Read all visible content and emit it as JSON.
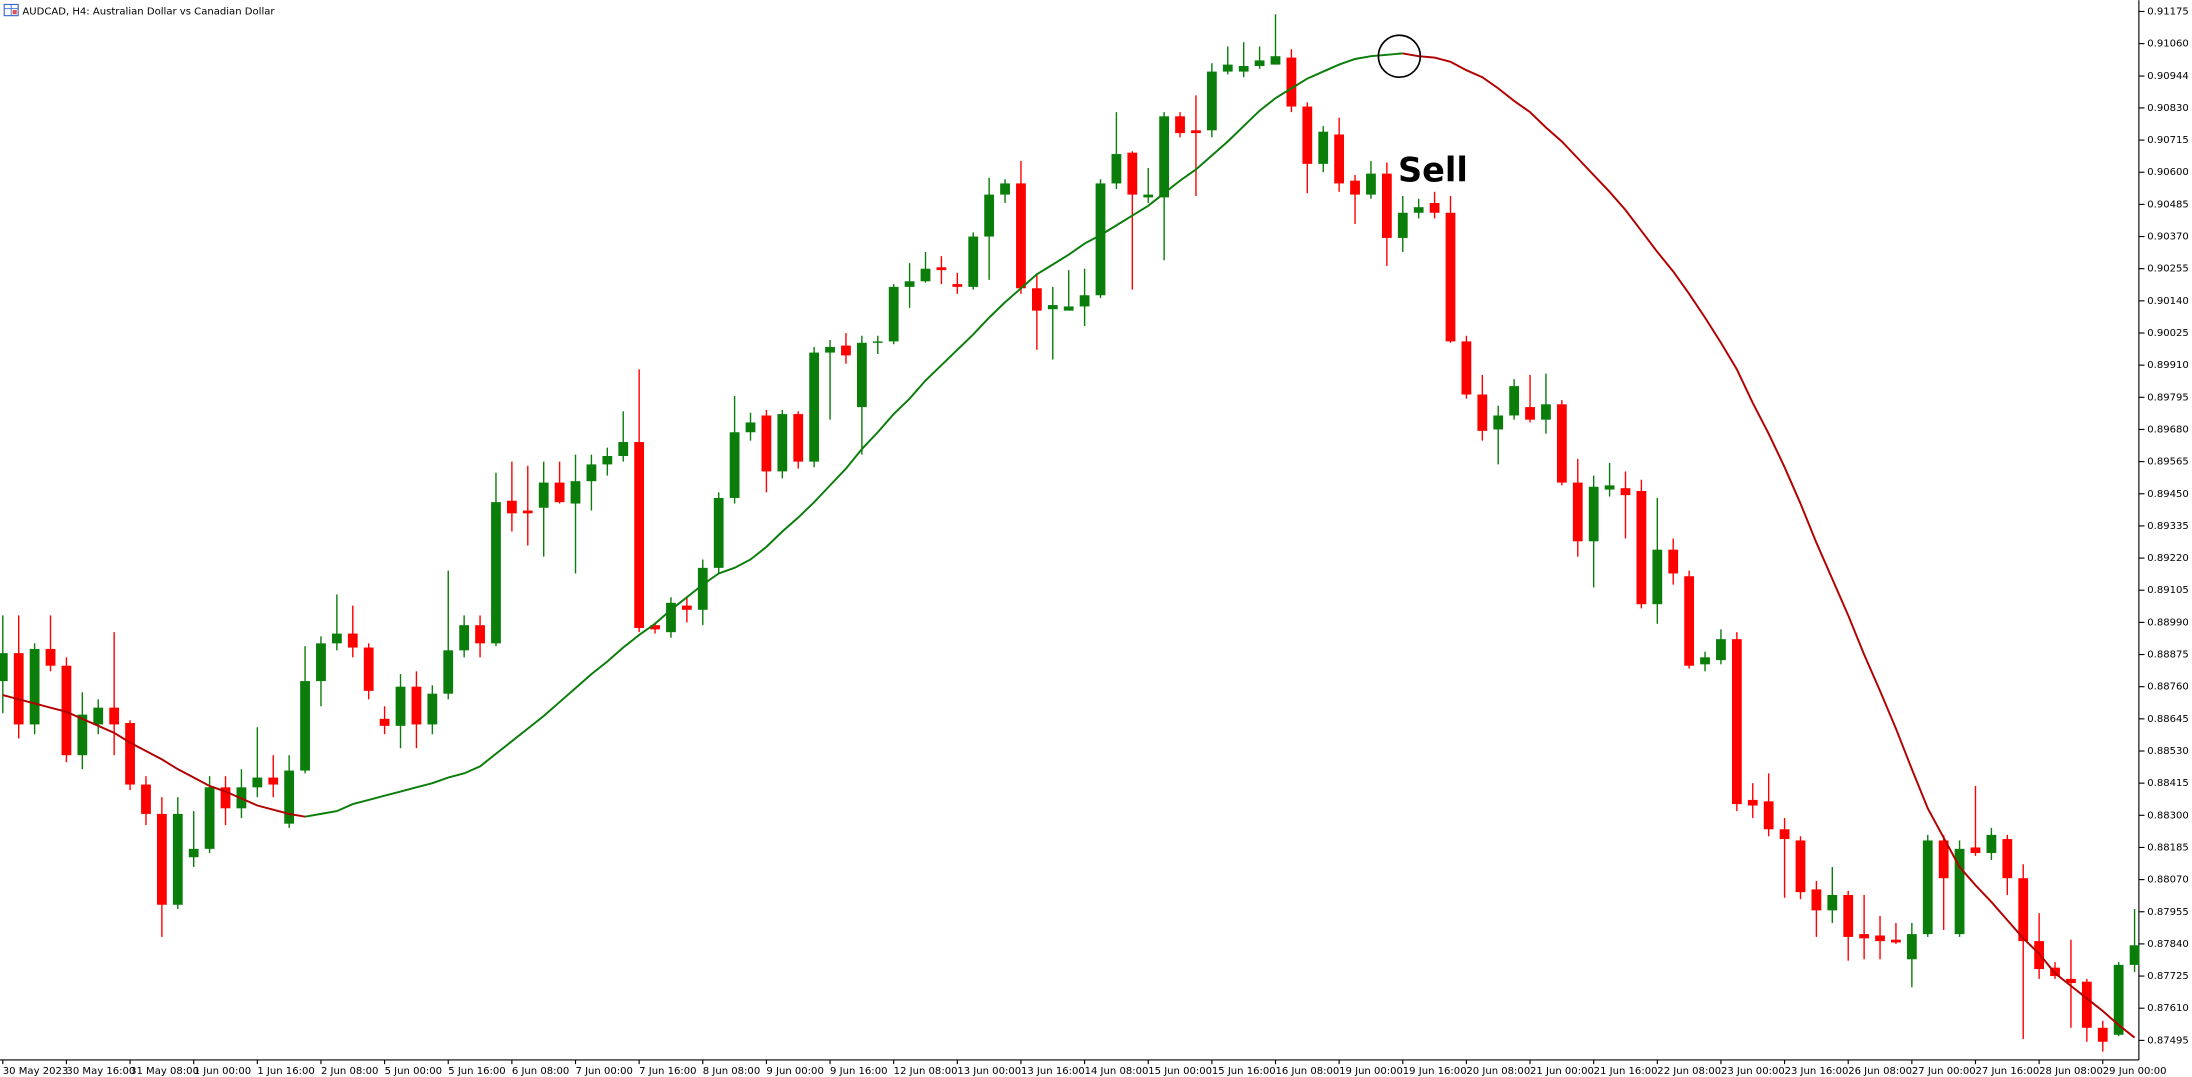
{
  "chart_data": {
    "type": "candlestick",
    "title": "AUDCAD, H4: Australian Dollar vs Canadian Dollar",
    "annotation": "Sell",
    "up_color": "#0a7d0a",
    "down_color": "#ff0000",
    "ylim": [
      0.87425,
      0.91215
    ],
    "yticks": [
      0.91175,
      {
        "value": 0.9106,
        "label": "0.91060"
      },
      0.90944,
      {
        "value": 0.9083,
        "label": "0.90830"
      },
      0.90715,
      {
        "value": 0.906,
        "label": "0.90600"
      },
      0.90485,
      {
        "value": 0.9037,
        "label": "0.90370"
      },
      0.90255,
      {
        "value": 0.9014,
        "label": "0.90140"
      },
      0.90025,
      {
        "value": 0.8991,
        "label": "0.89910"
      },
      0.89795,
      {
        "value": 0.8968,
        "label": "0.89680"
      },
      0.89565,
      {
        "value": 0.8945,
        "label": "0.89450"
      },
      0.89335,
      {
        "value": 0.8922,
        "label": "0.89220"
      },
      0.89105,
      {
        "value": 0.8899,
        "label": "0.88990"
      },
      0.88875,
      {
        "value": 0.8876,
        "label": "0.88760"
      },
      0.88645,
      {
        "value": 0.8853,
        "label": "0.88530"
      },
      0.88415,
      {
        "value": 0.883,
        "label": "0.88300"
      },
      0.88185,
      {
        "value": 0.8807,
        "label": "0.88070"
      },
      0.87955,
      {
        "value": 0.8784,
        "label": "0.87840"
      },
      0.87725,
      {
        "value": 0.8761,
        "label": "0.87610"
      },
      0.87495
    ],
    "categories": [
      "30 May 2023",
      null,
      null,
      null,
      "30 May 16:00",
      null,
      null,
      null,
      "31 May 08:00",
      null,
      null,
      null,
      "1 Jun 00:00",
      null,
      null,
      null,
      "1 Jun 16:00",
      null,
      null,
      null,
      "2 Jun 08:00",
      null,
      null,
      null,
      "5 Jun 00:00",
      null,
      null,
      null,
      "5 Jun 16:00",
      null,
      null,
      null,
      "6 Jun 08:00",
      null,
      null,
      null,
      "7 Jun 00:00",
      null,
      null,
      null,
      "7 Jun 16:00",
      null,
      null,
      null,
      "8 Jun 08:00",
      null,
      null,
      null,
      "9 Jun 00:00",
      null,
      null,
      null,
      "9 Jun 16:00",
      null,
      null,
      null,
      "12 Jun 08:00",
      null,
      null,
      null,
      "13 Jun 00:00",
      null,
      null,
      null,
      "13 Jun 16:00",
      null,
      null,
      null,
      "14 Jun 08:00",
      null,
      null,
      null,
      "15 Jun 00:00",
      null,
      null,
      null,
      "15 Jun 16:00",
      null,
      null,
      null,
      "16 Jun 08:00",
      null,
      null,
      null,
      "19 Jun 00:00",
      null,
      null,
      null,
      "19 Jun 16:00",
      null,
      null,
      null,
      "20 Jun 08:00",
      null,
      null,
      null,
      "21 Jun 00:00",
      null,
      null,
      null,
      "21 Jun 16:00",
      null,
      null,
      null,
      "22 Jun 08:00",
      null,
      null,
      null,
      "23 Jun 00:00",
      null,
      null,
      null,
      "23 Jun 16:00",
      null,
      null,
      null,
      "26 Jun 08:00",
      null,
      null,
      null,
      "27 Jun 00:00",
      null,
      null,
      null,
      "27 Jun 16:00",
      null,
      null,
      null,
      "28 Jun 08:00",
      null,
      null,
      null,
      "29 Jun 00:00",
      null,
      null
    ],
    "open": [
      0.8878,
      0.8888,
      0.88625,
      0.88895,
      0.88835,
      0.88515,
      0.88625,
      0.88685,
      0.8863,
      0.8841,
      0.88305,
      0.8798,
      0.8815,
      0.8818,
      0.884,
      0.88325,
      0.884,
      0.88435,
      0.8827,
      0.8846,
      0.8878,
      0.88915,
      0.8895,
      0.889,
      0.88645,
      0.8862,
      0.8876,
      0.88625,
      0.88735,
      0.8889,
      0.8898,
      0.88915,
      0.89425,
      0.8939,
      0.894,
      0.8949,
      0.89415,
      0.89495,
      0.89555,
      0.89585,
      0.89635,
      0.8898,
      0.88955,
      0.8905,
      0.89035,
      0.89185,
      0.89435,
      0.8967,
      0.8973,
      0.8953,
      0.89735,
      0.89565,
      0.89955,
      0.8998,
      0.8976,
      0.8999,
      0.89995,
      0.9019,
      0.9021,
      0.9026,
      0.902,
      0.9019,
      0.9037,
      0.9052,
      0.9056,
      0.90185,
      0.9011,
      0.90105,
      0.9012,
      0.9016,
      0.9056,
      0.9067,
      0.9051,
      0.9051,
      0.908,
      0.9075,
      0.9075,
      0.9096,
      0.9096,
      0.9098,
      0.90985,
      0.9101,
      0.90835,
      0.9063,
      0.90735,
      0.9057,
      0.9052,
      0.90595,
      0.90365,
      0.90455,
      0.9049,
      0.90455,
      0.89995,
      0.89805,
      0.8968,
      0.8973,
      0.8976,
      0.89715,
      0.8977,
      0.8949,
      0.8928,
      0.89465,
      0.8947,
      0.8946,
      0.89055,
      0.8925,
      0.89155,
      0.8884,
      0.88855,
      0.8893,
      0.88355,
      0.8835,
      0.8825,
      0.8821,
      0.88035,
      0.8796,
      0.88015,
      0.87875,
      0.8787,
      0.87855,
      0.87785,
      0.87875,
      0.8821,
      0.87875,
      0.88185,
      0.88165,
      0.88215,
      0.88075,
      0.8785,
      0.87755,
      0.87715,
      0.87705,
      0.8754,
      0.87515,
      0.87765
    ],
    "high": [
      0.89015,
      0.89015,
      0.88915,
      0.89015,
      0.88865,
      0.8874,
      0.88715,
      0.88955,
      0.8864,
      0.8844,
      0.88365,
      0.88365,
      0.88315,
      0.8844,
      0.8844,
      0.88465,
      0.88615,
      0.88515,
      0.88515,
      0.88905,
      0.8894,
      0.8909,
      0.8905,
      0.88915,
      0.8869,
      0.88805,
      0.88815,
      0.88765,
      0.89175,
      0.89015,
      0.89015,
      0.89525,
      0.89565,
      0.8955,
      0.89565,
      0.89565,
      0.8959,
      0.8959,
      0.89615,
      0.89745,
      0.89895,
      0.8899,
      0.8908,
      0.8908,
      0.89215,
      0.89455,
      0.898,
      0.8974,
      0.8975,
      0.8975,
      0.89745,
      0.89975,
      0.9,
      0.90025,
      0.90015,
      0.90015,
      0.902,
      0.90275,
      0.90315,
      0.903,
      0.9024,
      0.90385,
      0.9058,
      0.90575,
      0.9064,
      0.90235,
      0.9019,
      0.9025,
      0.90255,
      0.90575,
      0.90815,
      0.90675,
      0.90615,
      0.90815,
      0.90815,
      0.90875,
      0.9099,
      0.9105,
      0.91065,
      0.9105,
      0.91165,
      0.9104,
      0.9085,
      0.90765,
      0.90795,
      0.9059,
      0.9064,
      0.90635,
      0.90515,
      0.90505,
      0.9053,
      0.90515,
      0.90015,
      0.89875,
      0.89765,
      0.8986,
      0.89875,
      0.8988,
      0.89785,
      0.89575,
      0.89515,
      0.8956,
      0.8953,
      0.895,
      0.89435,
      0.8929,
      0.89175,
      0.88885,
      0.88965,
      0.88955,
      0.88415,
      0.8845,
      0.8829,
      0.88225,
      0.88065,
      0.88115,
      0.8803,
      0.88015,
      0.8794,
      0.87915,
      0.87915,
      0.8823,
      0.8823,
      0.8821,
      0.88405,
      0.88255,
      0.8823,
      0.88125,
      0.8795,
      0.87775,
      0.87855,
      0.87715,
      0.87565,
      0.87775,
      0.87965
    ],
    "low": [
      0.88665,
      0.88575,
      0.8859,
      0.88815,
      0.8849,
      0.88465,
      0.8859,
      0.88515,
      0.8839,
      0.88265,
      0.87865,
      0.87965,
      0.88115,
      0.88165,
      0.88265,
      0.8829,
      0.88365,
      0.88365,
      0.88255,
      0.8845,
      0.8869,
      0.8889,
      0.88865,
      0.88715,
      0.8859,
      0.8854,
      0.8854,
      0.8859,
      0.88715,
      0.88865,
      0.88865,
      0.88905,
      0.89315,
      0.89265,
      0.89225,
      0.89415,
      0.89165,
      0.8939,
      0.89515,
      0.89565,
      0.88955,
      0.8895,
      0.88935,
      0.8899,
      0.8898,
      0.89165,
      0.89415,
      0.8964,
      0.89455,
      0.89505,
      0.8954,
      0.89545,
      0.89715,
      0.89915,
      0.8959,
      0.8995,
      0.89985,
      0.90115,
      0.90205,
      0.902,
      0.90165,
      0.9018,
      0.90215,
      0.9049,
      0.90165,
      0.89965,
      0.8993,
      0.90105,
      0.9005,
      0.9015,
      0.9054,
      0.9018,
      0.9049,
      0.90285,
      0.90725,
      0.90515,
      0.90725,
      0.9095,
      0.9094,
      0.9097,
      0.90985,
      0.90815,
      0.90525,
      0.906,
      0.9053,
      0.90415,
      0.90505,
      0.90265,
      0.90315,
      0.90435,
      0.90435,
      0.8999,
      0.8979,
      0.8964,
      0.89555,
      0.89715,
      0.89705,
      0.89665,
      0.8948,
      0.89225,
      0.89115,
      0.8944,
      0.8929,
      0.8904,
      0.88985,
      0.89125,
      0.88825,
      0.88815,
      0.8884,
      0.88315,
      0.8829,
      0.88225,
      0.88005,
      0.88,
      0.87865,
      0.87915,
      0.8778,
      0.87785,
      0.87785,
      0.8784,
      0.87685,
      0.87865,
      0.8789,
      0.87865,
      0.88155,
      0.8814,
      0.88015,
      0.875,
      0.87715,
      0.87715,
      0.8754,
      0.8749,
      0.87455,
      0.8751,
      0.8774
    ],
    "close": [
      0.8888,
      0.88625,
      0.88895,
      0.88835,
      0.88515,
      0.8866,
      0.88685,
      0.88625,
      0.8841,
      0.88305,
      0.8798,
      0.88305,
      0.8818,
      0.884,
      0.88325,
      0.884,
      0.88435,
      0.8841,
      0.8846,
      0.8878,
      0.88915,
      0.8895,
      0.889,
      0.88745,
      0.8862,
      0.8876,
      0.88625,
      0.88735,
      0.8889,
      0.8898,
      0.88915,
      0.8942,
      0.8938,
      0.8938,
      0.8949,
      0.8942,
      0.89495,
      0.89555,
      0.89585,
      0.89635,
      0.8897,
      0.88965,
      0.8906,
      0.89035,
      0.89185,
      0.89435,
      0.8967,
      0.89705,
      0.8953,
      0.89735,
      0.89565,
      0.89955,
      0.89975,
      0.89945,
      0.8999,
      0.89995,
      0.9019,
      0.9021,
      0.90255,
      0.9025,
      0.9019,
      0.9037,
      0.9052,
      0.9056,
      0.90185,
      0.90105,
      0.90125,
      0.9012,
      0.9016,
      0.9056,
      0.90665,
      0.9052,
      0.9052,
      0.908,
      0.9074,
      0.9074,
      0.9096,
      0.90985,
      0.9098,
      0.91,
      0.91015,
      0.90835,
      0.9063,
      0.90745,
      0.9056,
      0.9052,
      0.90595,
      0.90365,
      0.90455,
      0.90475,
      0.90455,
      0.89995,
      0.89805,
      0.89675,
      0.8973,
      0.89835,
      0.89715,
      0.8977,
      0.8949,
      0.8928,
      0.89475,
      0.8948,
      0.89445,
      0.89055,
      0.8925,
      0.89165,
      0.88835,
      0.88865,
      0.8893,
      0.8834,
      0.88335,
      0.8825,
      0.88215,
      0.88025,
      0.8796,
      0.88015,
      0.87865,
      0.8786,
      0.8785,
      0.87845,
      0.87875,
      0.8821,
      0.88075,
      0.8818,
      0.88165,
      0.8823,
      0.88075,
      0.8785,
      0.8775,
      0.87725,
      0.877,
      0.8754,
      0.8749,
      0.87765,
      0.87835
    ],
    "ma": {
      "up_color": "#0a7d0a",
      "down_color": "#b30000",
      "values": [
        0.8873,
        0.88715,
        0.887,
        0.88685,
        0.8867,
        0.88645,
        0.8862,
        0.88595,
        0.8856,
        0.8853,
        0.885,
        0.88465,
        0.88435,
        0.88405,
        0.88385,
        0.8836,
        0.88335,
        0.8832,
        0.88305,
        0.88295,
        0.88305,
        0.88315,
        0.8834,
        0.88355,
        0.8837,
        0.88385,
        0.884,
        0.88415,
        0.88435,
        0.8845,
        0.88475,
        0.8852,
        0.88565,
        0.8861,
        0.88655,
        0.88705,
        0.88755,
        0.88805,
        0.8885,
        0.889,
        0.88945,
        0.88985,
        0.89035,
        0.8908,
        0.89125,
        0.89165,
        0.89185,
        0.89215,
        0.8926,
        0.89315,
        0.89365,
        0.8942,
        0.8948,
        0.8954,
        0.8961,
        0.8967,
        0.89735,
        0.8979,
        0.89855,
        0.8991,
        0.89965,
        0.9002,
        0.9008,
        0.90135,
        0.90185,
        0.90235,
        0.9027,
        0.90305,
        0.90345,
        0.90375,
        0.9041,
        0.90445,
        0.9048,
        0.90525,
        0.9057,
        0.9061,
        0.9066,
        0.9071,
        0.90765,
        0.9082,
        0.90865,
        0.909,
        0.90935,
        0.9096,
        0.90985,
        0.91005,
        0.91015,
        0.9102,
        0.91025,
        0.91015,
        0.9101,
        0.90995,
        0.90965,
        0.9094,
        0.909,
        0.90855,
        0.90815,
        0.9076,
        0.9071,
        0.9065,
        0.9059,
        0.9053,
        0.90465,
        0.9039,
        0.90315,
        0.90245,
        0.90165,
        0.9008,
        0.8999,
        0.89895,
        0.89775,
        0.89665,
        0.89545,
        0.89415,
        0.89275,
        0.89145,
        0.89015,
        0.88875,
        0.88745,
        0.8861,
        0.88465,
        0.88325,
        0.8822,
        0.88115,
        0.8805,
        0.8799,
        0.87925,
        0.8786,
        0.87805,
        0.87735,
        0.8769,
        0.87645,
        0.876,
        0.8755,
        0.87505
      ]
    }
  }
}
